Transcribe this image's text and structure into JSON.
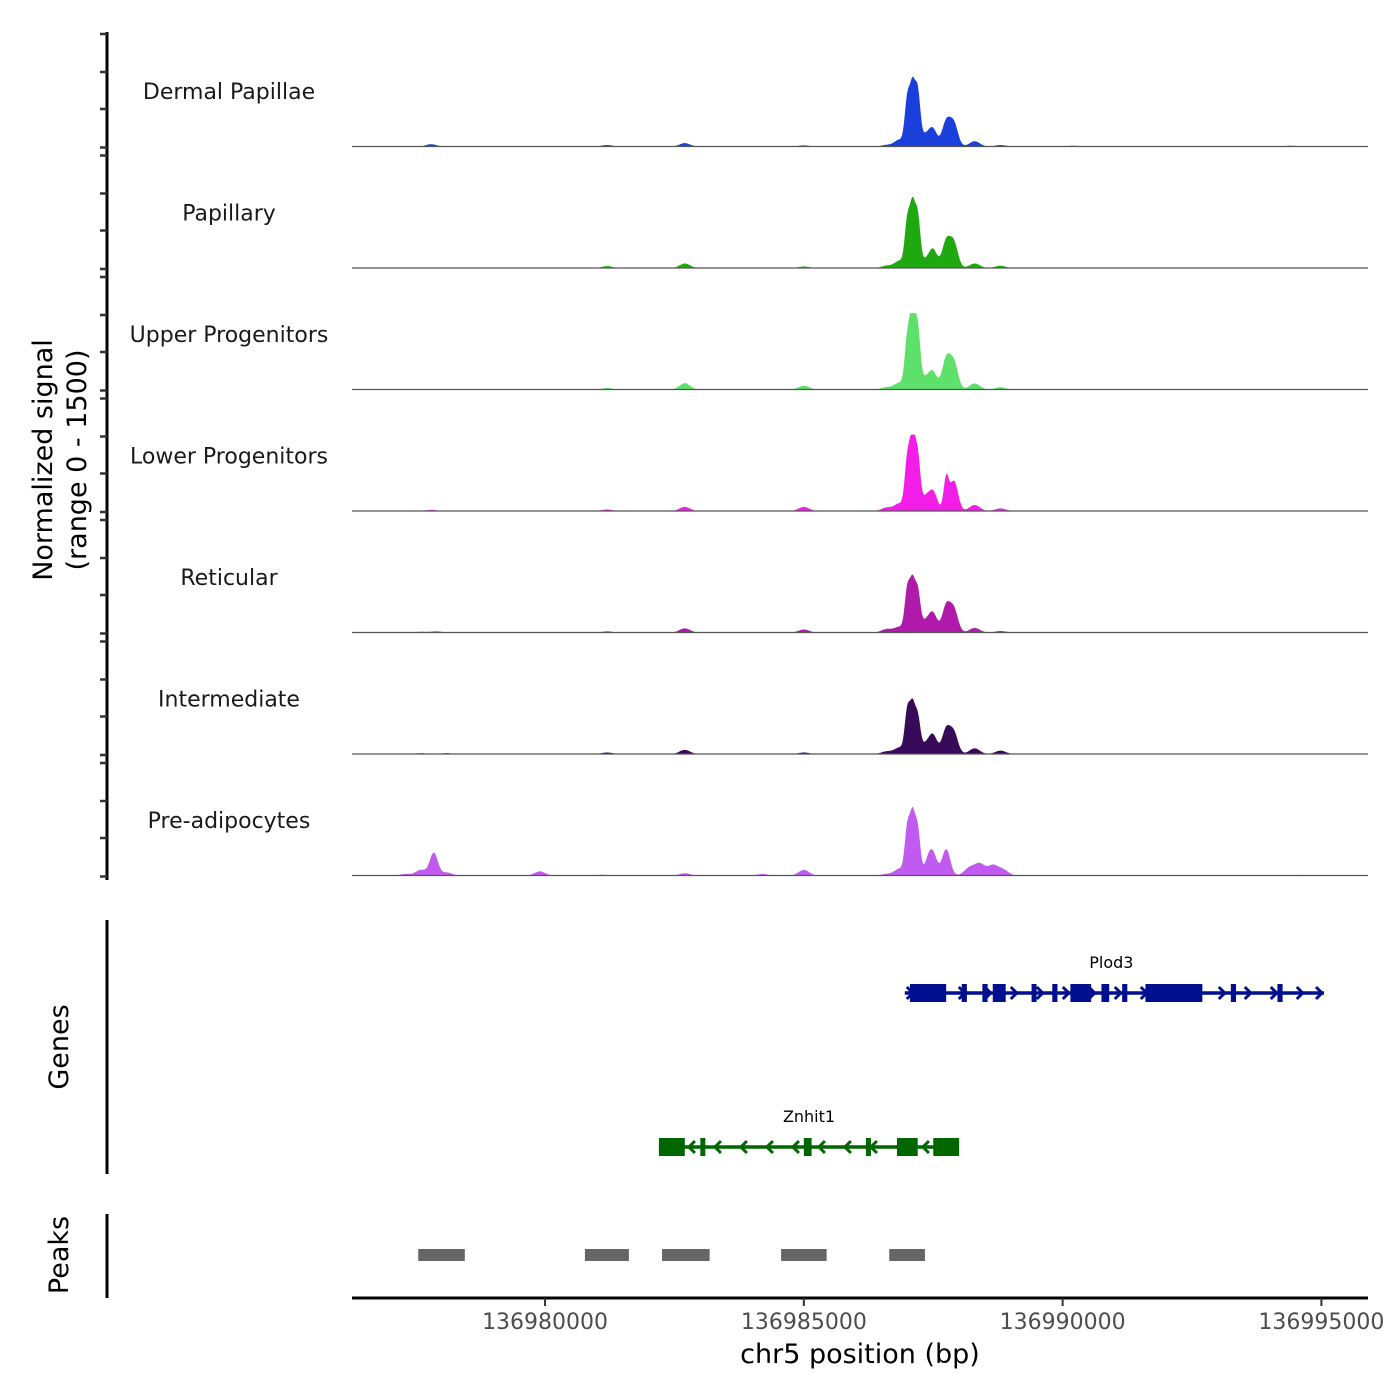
{
  "chart_data": {
    "type": "area",
    "title": "",
    "ylabel_line1": "Normalized signal",
    "ylabel_line2": "(range 0 - 1500)",
    "xlabel": "chr5 position (bp)",
    "ylim": [
      0,
      1500
    ],
    "xlim": [
      136976270,
      136995900
    ],
    "x_ticks": [
      136980000,
      136985000,
      136990000,
      136995000
    ],
    "x_tick_labels": [
      "136980000",
      "136985000",
      "136990000",
      "136995000"
    ],
    "grid": false,
    "legend": "none",
    "tracks": [
      {
        "name": "Dermal Papillae",
        "color": "#1a3fdb",
        "peaks": [
          [
            136977800,
            60
          ],
          [
            136981200,
            40
          ],
          [
            136982700,
            90
          ],
          [
            136985000,
            30
          ],
          [
            136986600,
            40
          ],
          [
            136986850,
            180
          ],
          [
            136987000,
            1200
          ],
          [
            136987100,
            1500
          ],
          [
            136987200,
            1350
          ],
          [
            136987350,
            300
          ],
          [
            136987500,
            400
          ],
          [
            136987750,
            650
          ],
          [
            136987900,
            600
          ],
          [
            136988300,
            140
          ],
          [
            136988800,
            40
          ],
          [
            136990200,
            20
          ],
          [
            136994400,
            20
          ]
        ]
      },
      {
        "name": "Papillary",
        "color": "#1fa80f",
        "peaks": [
          [
            136981200,
            50
          ],
          [
            136982700,
            120
          ],
          [
            136985000,
            40
          ],
          [
            136986600,
            60
          ],
          [
            136986850,
            190
          ],
          [
            136987000,
            1200
          ],
          [
            136987100,
            1550
          ],
          [
            136987200,
            1300
          ],
          [
            136987350,
            200
          ],
          [
            136987500,
            450
          ],
          [
            136987750,
            700
          ],
          [
            136987900,
            650
          ],
          [
            136988300,
            120
          ],
          [
            136988800,
            60
          ],
          [
            136990000,
            10
          ]
        ]
      },
      {
        "name": "Upper Progenitors",
        "color": "#5ee06a",
        "peaks": [
          [
            136981200,
            40
          ],
          [
            136982700,
            170
          ],
          [
            136985000,
            100
          ],
          [
            136986600,
            60
          ],
          [
            136986850,
            180
          ],
          [
            136987000,
            1300
          ],
          [
            136987100,
            2000
          ],
          [
            136987200,
            1500
          ],
          [
            136987350,
            300
          ],
          [
            136987500,
            400
          ],
          [
            136987750,
            800
          ],
          [
            136987900,
            700
          ],
          [
            136988300,
            160
          ],
          [
            136988800,
            60
          ]
        ]
      },
      {
        "name": "Lower Progenitors",
        "color": "#f21ee8",
        "peaks": [
          [
            136977800,
            30
          ],
          [
            136981200,
            40
          ],
          [
            136982700,
            110
          ],
          [
            136985000,
            110
          ],
          [
            136986600,
            90
          ],
          [
            136986850,
            200
          ],
          [
            136987000,
            1300
          ],
          [
            136987100,
            1900
          ],
          [
            136987200,
            1400
          ],
          [
            136987350,
            350
          ],
          [
            136987500,
            500
          ],
          [
            136987750,
            850
          ],
          [
            136987900,
            800
          ],
          [
            136988300,
            160
          ],
          [
            136988800,
            70
          ]
        ]
      },
      {
        "name": "Reticular",
        "color": "#b01aaa",
        "peaks": [
          [
            136977600,
            20
          ],
          [
            136977900,
            30
          ],
          [
            136981200,
            30
          ],
          [
            136982700,
            110
          ],
          [
            136985000,
            80
          ],
          [
            136986600,
            90
          ],
          [
            136986850,
            150
          ],
          [
            136987000,
            1100
          ],
          [
            136987100,
            1250
          ],
          [
            136987200,
            1000
          ],
          [
            136987350,
            300
          ],
          [
            136987500,
            450
          ],
          [
            136987750,
            700
          ],
          [
            136987900,
            600
          ],
          [
            136988300,
            120
          ],
          [
            136988800,
            40
          ]
        ]
      },
      {
        "name": "Intermediate",
        "color": "#3a0a5a",
        "peaks": [
          [
            136977600,
            20
          ],
          [
            136978100,
            20
          ],
          [
            136981200,
            40
          ],
          [
            136982700,
            110
          ],
          [
            136985000,
            40
          ],
          [
            136986600,
            70
          ],
          [
            136986850,
            170
          ],
          [
            136987000,
            1100
          ],
          [
            136987100,
            1200
          ],
          [
            136987200,
            900
          ],
          [
            136987350,
            260
          ],
          [
            136987500,
            450
          ],
          [
            136987750,
            650
          ],
          [
            136987900,
            550
          ],
          [
            136988300,
            150
          ],
          [
            136988800,
            90
          ]
        ]
      },
      {
        "name": "Pre-adipocytes",
        "color": "#c05af0",
        "peaks": [
          [
            136977300,
            40
          ],
          [
            136977600,
            150
          ],
          [
            136977850,
            600
          ],
          [
            136978100,
            80
          ],
          [
            136979900,
            110
          ],
          [
            136981100,
            20
          ],
          [
            136982700,
            60
          ],
          [
            136984200,
            40
          ],
          [
            136985000,
            150
          ],
          [
            136986600,
            40
          ],
          [
            136986850,
            180
          ],
          [
            136987000,
            1200
          ],
          [
            136987100,
            1500
          ],
          [
            136987200,
            1200
          ],
          [
            136987400,
            350
          ],
          [
            136987500,
            500
          ],
          [
            136987750,
            700
          ],
          [
            136988200,
            200
          ],
          [
            136988400,
            300
          ],
          [
            136988650,
            260
          ],
          [
            136988850,
            150
          ],
          [
            136994600,
            15
          ]
        ]
      }
    ],
    "genes_track_label": "Genes",
    "genes": [
      {
        "name": "Plod3",
        "strand": "+",
        "color": "#000f8f",
        "start": 136986950,
        "end": 136995050,
        "exons": [
          [
            136987050,
            136987750
          ],
          [
            136988050,
            136988150
          ],
          [
            136988450,
            136988550
          ],
          [
            136988650,
            136988900
          ],
          [
            136989400,
            136989450
          ],
          [
            136989800,
            136989900
          ],
          [
            136990150,
            136990550
          ],
          [
            136990750,
            136990900
          ],
          [
            136991150,
            136991250
          ],
          [
            136991600,
            136992700
          ],
          [
            136993250,
            136993350
          ],
          [
            136994150,
            136994250
          ]
        ]
      },
      {
        "name": "Znhit1",
        "strand": "-",
        "color": "#006600",
        "start": 136982200,
        "end": 136988000,
        "exons": [
          [
            136982200,
            136982700
          ],
          [
            136983000,
            136983080
          ],
          [
            136985000,
            136985150
          ],
          [
            136986200,
            136986280
          ],
          [
            136986800,
            136987200
          ],
          [
            136987500,
            136988000
          ]
        ]
      }
    ],
    "peaks_track_label": "Peaks",
    "peaks_color": "#666666",
    "peak_regions": [
      [
        136977550,
        136978450
      ],
      [
        136980770,
        136981620
      ],
      [
        136982260,
        136983180
      ],
      [
        136984560,
        136985440
      ],
      [
        136986650,
        136987340
      ]
    ]
  }
}
